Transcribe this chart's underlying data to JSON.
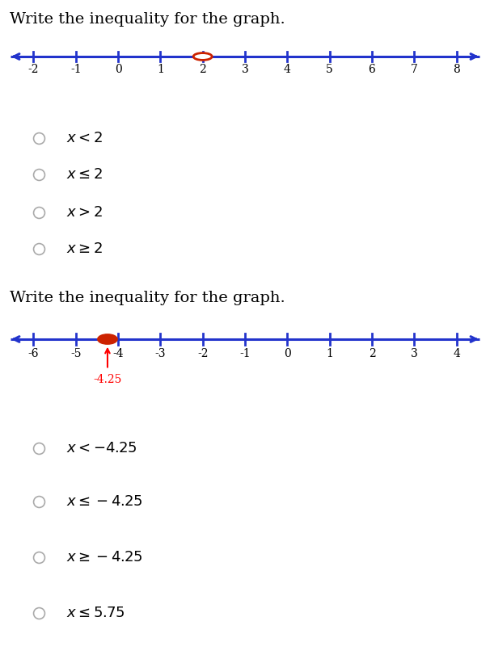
{
  "title1": "Write the inequality for the graph.",
  "title2": "Write the inequality for the graph.",
  "graph1": {
    "xmin": -2,
    "xmax": 8,
    "ticks": [
      -2,
      -1,
      0,
      1,
      2,
      3,
      4,
      5,
      6,
      7,
      8
    ],
    "point": 2,
    "open_circle": true,
    "line_color": "#2233cc",
    "point_color": "#cc2200"
  },
  "graph2": {
    "xmin": -6,
    "xmax": 4,
    "ticks": [
      -6,
      -5,
      -4,
      -3,
      -2,
      -1,
      0,
      1,
      2,
      3,
      4
    ],
    "point": -4.25,
    "open_circle": false,
    "line_color": "#2233cc",
    "point_color": "#cc2200",
    "annotation": "-4.25"
  },
  "choices1": [
    "x < 2",
    "x \\leq 2",
    "x > 2",
    "x \\geq 2"
  ],
  "choices2": [
    "x < -4.25",
    "x \\leq -4.25",
    "x \\geq -4.25",
    "x \\leq 5.75"
  ],
  "bg_color": "#ffffff",
  "text_color": "#000000",
  "title_fontsize": 14,
  "choice_fontsize": 13
}
